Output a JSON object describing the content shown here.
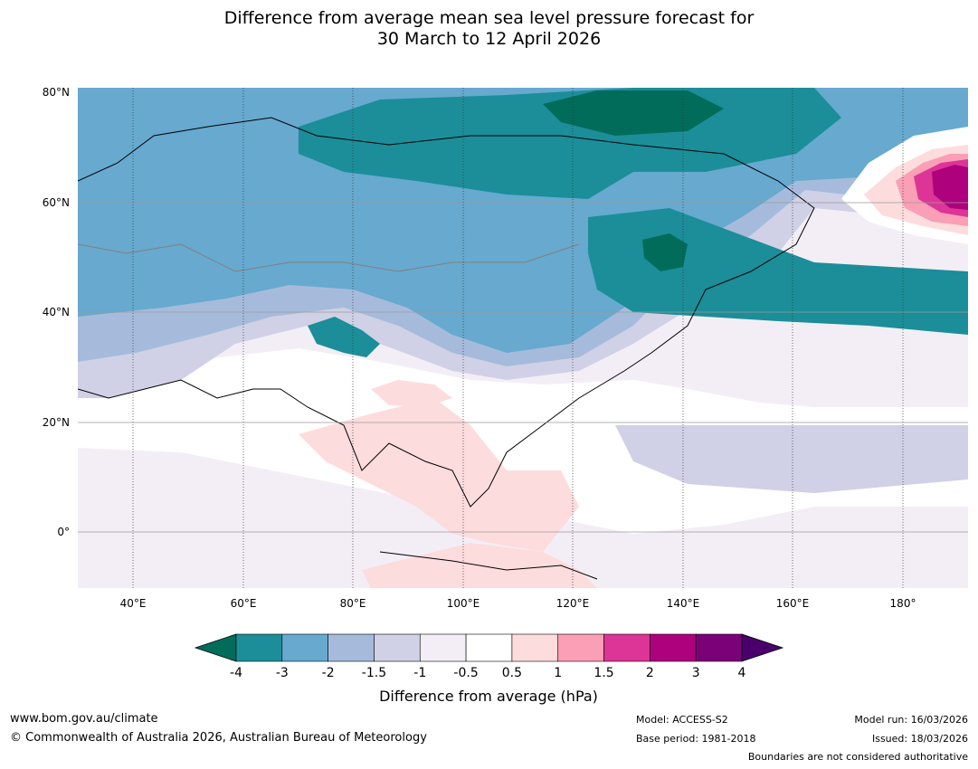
{
  "title": {
    "line1": "Difference from average mean sea level pressure forecast for",
    "line2": "30 March to 12 April 2026"
  },
  "map": {
    "region": "Asia",
    "lat_labels": [
      "80°N",
      "60°N",
      "40°N",
      "20°N",
      "0°"
    ],
    "lon_labels": [
      "40°E",
      "60°E",
      "80°E",
      "100°E",
      "120°E",
      "140°E",
      "160°E",
      "180°"
    ]
  },
  "colorbar": {
    "title": "Difference from average (hPa)",
    "ticks": [
      "-4",
      "-3",
      "-2",
      "-1.5",
      "-1",
      "-0.5",
      "0.5",
      "1",
      "1.5",
      "2",
      "3",
      "4"
    ],
    "bins": [
      {
        "range": "-4 to -3",
        "color": "#1b8e99"
      },
      {
        "range": "-3 to -2",
        "color": "#67a9cf"
      },
      {
        "range": "-2 to -1.5",
        "color": "#a6bbdb"
      },
      {
        "range": "-1.5 to -1",
        "color": "#d0d1e6"
      },
      {
        "range": "-1 to -0.5",
        "color": "#f3eef6"
      },
      {
        "range": "-0.5 to 0.5",
        "color": "#ffffff"
      },
      {
        "range": "0.5 to 1",
        "color": "#fddcdd"
      },
      {
        "range": "1 to 1.5",
        "color": "#fa9fb5"
      },
      {
        "range": "1.5 to 2",
        "color": "#dd3497"
      },
      {
        "range": "2 to 3",
        "color": "#ae017e"
      },
      {
        "range": "3 to 4",
        "color": "#7a0177"
      }
    ],
    "under_color": "#016c59",
    "over_color": "#49006a"
  },
  "footer": {
    "website": "www.bom.gov.au/climate",
    "copyright": "© Commonwealth of Australia 2026, Australian Bureau of Meteorology",
    "model": "Model: ACCESS-S2",
    "base_period": "Base period: 1981-2018",
    "model_run": "Model run: 16/03/2026",
    "issued": "Issued: 18/03/2026",
    "disclaimer": "Boundaries are not considered authoritative"
  }
}
